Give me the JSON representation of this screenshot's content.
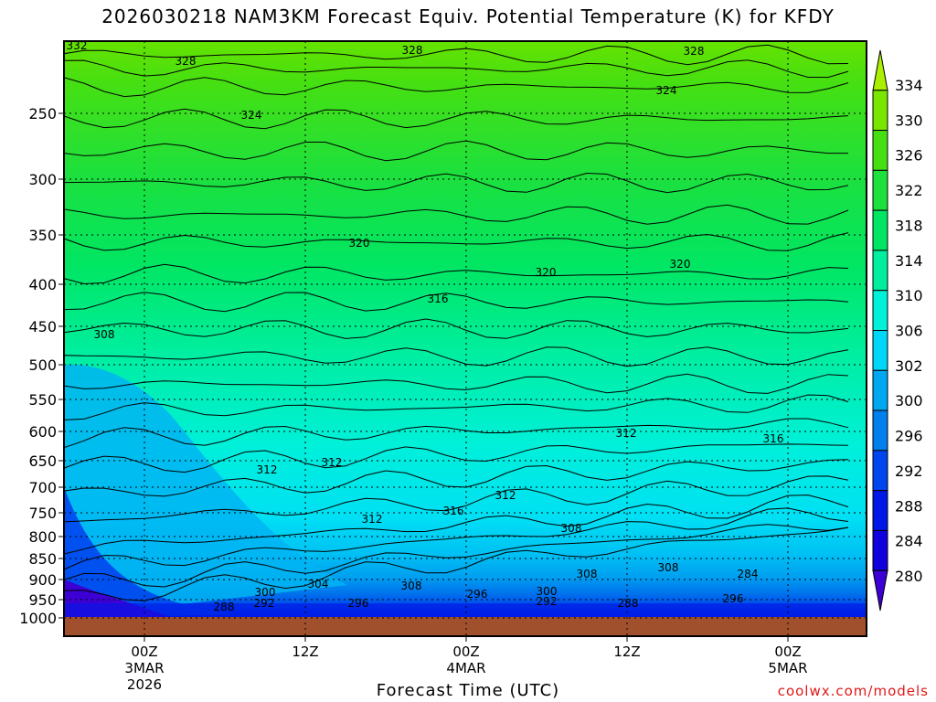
{
  "chart_data": {
    "type": "heatmap",
    "title": "2026030218 NAM3KM Forecast Equiv. Potential Temperature (K) for KFDY",
    "xlabel": "Forecast Time (UTC)",
    "credit": "coolwx.com/models",
    "y_axis": {
      "quantity": "pressure (hPa)",
      "direction": "decreasing upward",
      "ticks": [
        250,
        300,
        350,
        400,
        450,
        500,
        550,
        600,
        650,
        700,
        750,
        800,
        850,
        900,
        950,
        1000
      ]
    },
    "x_axis": {
      "ticks": [
        {
          "lines": [
            "00Z",
            "3MAR",
            "2026"
          ],
          "hour": 0
        },
        {
          "lines": [
            "12Z"
          ],
          "hour": 12
        },
        {
          "lines": [
            "00Z",
            "4MAR"
          ],
          "hour": 24
        },
        {
          "lines": [
            "12Z"
          ],
          "hour": 36
        },
        {
          "lines": [
            "00Z",
            "5MAR"
          ],
          "hour": 48
        }
      ],
      "range_hours": [
        -6,
        54
      ]
    },
    "colorbar": {
      "levels": [
        334,
        330,
        326,
        322,
        318,
        314,
        310,
        306,
        302,
        300,
        296,
        292,
        288,
        284,
        280
      ],
      "colors": [
        "#aaf000",
        "#78e600",
        "#46e012",
        "#1ee03c",
        "#00e664",
        "#00ee9e",
        "#00f0da",
        "#00d6f8",
        "#00a8f0",
        "#0080ec",
        "#0046ee",
        "#0018e6",
        "#1000dc",
        "#3c00d4"
      ]
    },
    "contour_labels": [
      "332",
      "328",
      "328",
      "328",
      "324",
      "324",
      "320",
      "320",
      "320",
      "316",
      "316",
      "316",
      "312",
      "312",
      "312",
      "312",
      "312",
      "308",
      "308",
      "308",
      "308",
      "308",
      "304",
      "300",
      "300",
      "296",
      "296",
      "296",
      "292",
      "292",
      "288",
      "288",
      "284"
    ],
    "ground_color": "#a0502d"
  }
}
